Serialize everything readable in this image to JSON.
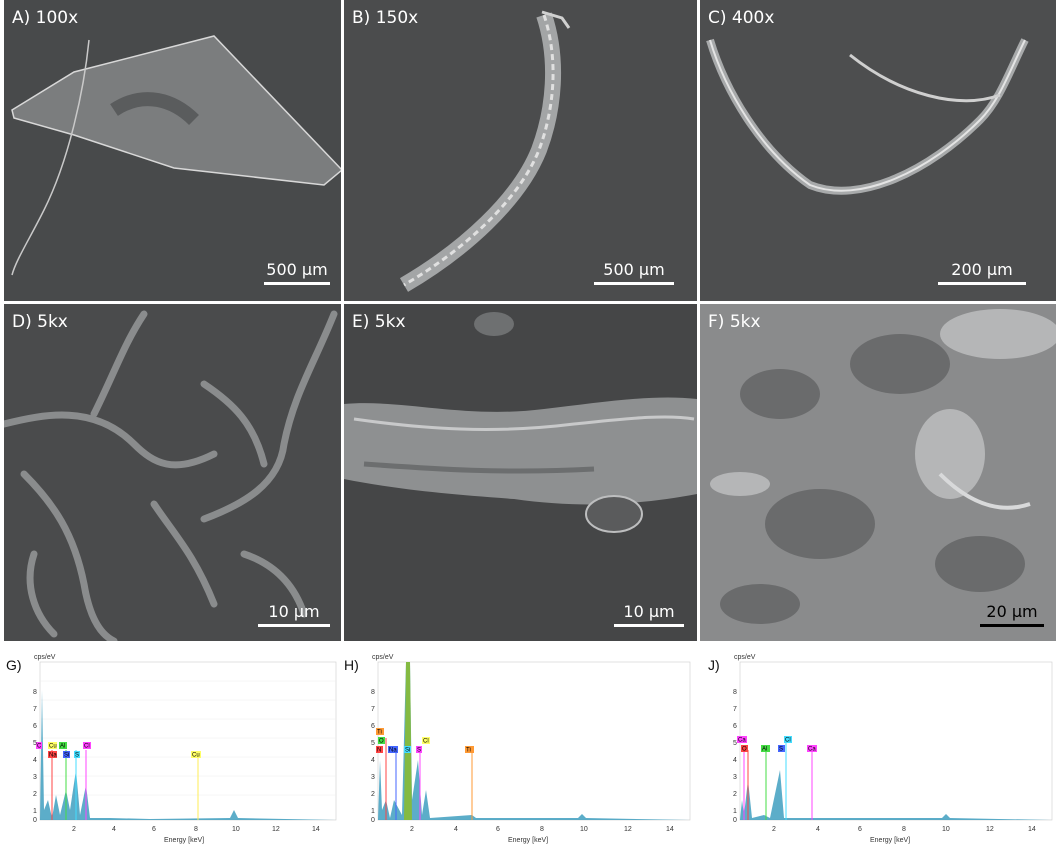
{
  "sem_panels": [
    {
      "id": "A",
      "label": "A) 100x",
      "scale": "500 µm"
    },
    {
      "id": "B",
      "label": "B) 150x",
      "scale": "500 µm"
    },
    {
      "id": "C",
      "label": "C) 400x",
      "scale": "200 µm"
    },
    {
      "id": "D",
      "label": "D) 5kx",
      "scale": "10 µm"
    },
    {
      "id": "E",
      "label": "E) 5kx",
      "scale": "10 µm"
    },
    {
      "id": "F",
      "label": "F) 5kx",
      "scale": "20 µm"
    }
  ],
  "spectra": [
    {
      "id": "G",
      "label": "G)",
      "yunit": "cps/eV",
      "xlabel": "Energy [keV]",
      "yticks": [
        "8",
        "7",
        "6",
        "5",
        "4",
        "3",
        "2",
        "1",
        "0"
      ],
      "xticks": [
        "2",
        "4",
        "6",
        "8",
        "10",
        "12",
        "14"
      ],
      "elements": [
        "C",
        "Cu",
        "Al",
        "Na",
        "Si",
        "S",
        "Cl",
        "Cu"
      ],
      "element_colors": [
        "#ff44ff",
        "#ffff66",
        "#44dd44",
        "#ff4444",
        "#4466ff",
        "#44ddff",
        "#ff44ff",
        "#ffff66"
      ]
    },
    {
      "id": "H",
      "label": "H)",
      "yunit": "cps/eV",
      "xlabel": "Energy [keV]",
      "yticks": [
        "8",
        "7",
        "6",
        "5",
        "4",
        "3",
        "2",
        "1",
        "0"
      ],
      "xticks": [
        "2",
        "4",
        "6",
        "8",
        "10",
        "12",
        "14"
      ],
      "elements": [
        "Ti",
        "O",
        "N",
        "Na",
        "Si",
        "S",
        "Cl",
        "Ti"
      ],
      "element_colors": [
        "#ff9933",
        "#44dd44",
        "#ff4444",
        "#4466ff",
        "#44ddff",
        "#ff44ff",
        "#ffff66",
        "#ff9933"
      ]
    },
    {
      "id": "J",
      "label": "J)",
      "yunit": "cps/eV",
      "xlabel": "Energy [keV]",
      "yticks": [
        "8",
        "7",
        "6",
        "5",
        "4",
        "3",
        "2",
        "1",
        "0"
      ],
      "xticks": [
        "2",
        "4",
        "6",
        "8",
        "10",
        "12",
        "14"
      ],
      "elements": [
        "Ca",
        "O",
        "Al",
        "S",
        "Cl",
        "Ca"
      ],
      "element_colors": [
        "#ff44ff",
        "#ff4444",
        "#44dd44",
        "#4466ff",
        "#44ddff",
        "#ff44ff"
      ]
    }
  ]
}
